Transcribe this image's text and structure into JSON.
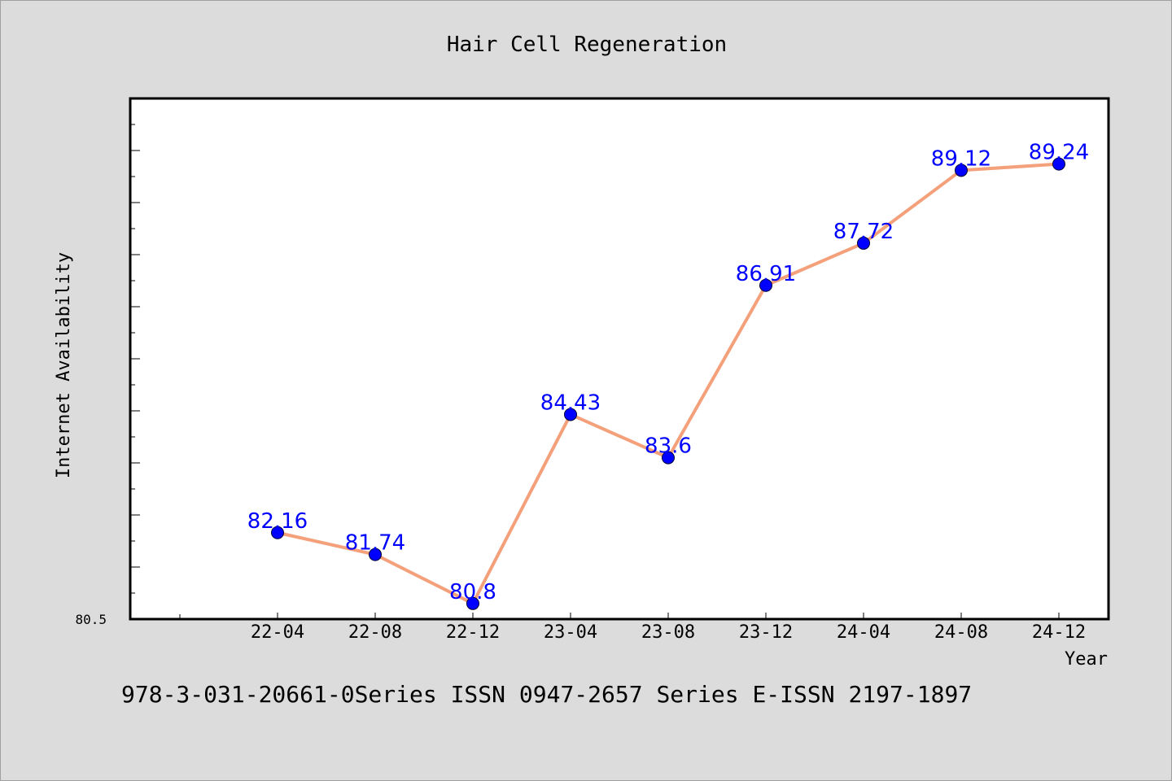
{
  "chart_data": {
    "type": "line",
    "title": "Hair Cell Regeneration",
    "xlabel": "Year",
    "ylabel": "Internet Availability",
    "categories": [
      "22-04",
      "22-08",
      "22-12",
      "23-04",
      "23-08",
      "23-12",
      "24-04",
      "24-08",
      "24-12"
    ],
    "series": [
      {
        "values": [
          82.16,
          81.74,
          80.8,
          84.43,
          83.6,
          86.91,
          87.72,
          89.12,
          89.24
        ],
        "labels": [
          "82.16",
          "81.74",
          "80.8",
          "84.43",
          "83.6",
          "86.91",
          "87.72",
          "89.12",
          "89.24"
        ]
      }
    ],
    "ylim": [
      80.5,
      90.5
    ],
    "yticks_labeled": [
      "80.5"
    ],
    "grid": false,
    "line_color": "#f4a07a",
    "marker_color": "#0000ff",
    "label_color": "#0000ff"
  },
  "footer_text": "978-3-031-20661-0Series ISSN 0947-2657 Series E-ISSN 2197-1897"
}
